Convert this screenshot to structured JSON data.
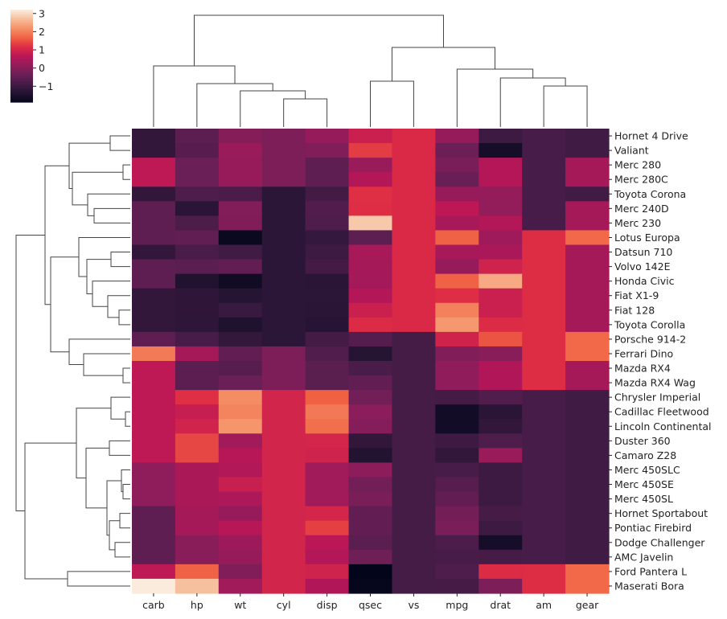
{
  "chart_data": {
    "type": "heatmap",
    "subtype": "clustermap",
    "title": "",
    "colormap": "rocket",
    "value_range": [
      -1.87,
      3.21
    ],
    "colorbar": {
      "ticks": [
        3,
        2,
        1,
        0,
        -1
      ],
      "tick_labels": [
        "3",
        "2",
        "1",
        "0",
        "−1"
      ],
      "placement": "top-left"
    },
    "columns": [
      "carb",
      "hp",
      "wt",
      "cyl",
      "disp",
      "qsec",
      "vs",
      "mpg",
      "drat",
      "am",
      "gear"
    ],
    "rows": [
      "Hornet 4 Drive",
      "Valiant",
      "Merc 280",
      "Merc 280C",
      "Toyota Corona",
      "Merc 240D",
      "Merc 230",
      "Lotus Europa",
      "Datsun 710",
      "Volvo 142E",
      "Honda Civic",
      "Fiat X1-9",
      "Fiat 128",
      "Toyota Corolla",
      "Porsche 914-2",
      "Ferrari Dino",
      "Mazda RX4",
      "Mazda RX4 Wag",
      "Chrysler Imperial",
      "Cadillac Fleetwood",
      "Lincoln Continental",
      "Duster 360",
      "Camaro Z28",
      "Merc 450SLC",
      "Merc 450SE",
      "Merc 450SL",
      "Hornet Sportabout",
      "Pontiac Firebird",
      "Dodge Challenger",
      "AMC Javelin",
      "Ford Pantera L",
      "Maserati Bora"
    ],
    "values": [
      [
        -1.12,
        -0.54,
        0.0,
        -0.1,
        0.22,
        0.89,
        1.12,
        0.22,
        -0.97,
        -0.81,
        -0.93
      ],
      [
        -1.12,
        -0.61,
        0.25,
        -0.1,
        -0.05,
        1.33,
        1.12,
        -0.33,
        -1.56,
        -0.81,
        -0.93
      ],
      [
        0.74,
        -0.35,
        0.23,
        -0.1,
        -0.51,
        0.25,
        1.12,
        -0.15,
        0.6,
        -0.81,
        0.42
      ],
      [
        0.74,
        -0.35,
        0.23,
        -0.1,
        -0.51,
        0.59,
        1.12,
        -0.38,
        0.6,
        -0.81,
        0.42
      ],
      [
        -1.12,
        -0.72,
        -0.77,
        -1.22,
        -0.89,
        1.21,
        1.12,
        0.23,
        0.19,
        -0.81,
        -0.93
      ],
      [
        -0.5,
        -1.24,
        -0.03,
        -1.22,
        -0.68,
        1.2,
        1.12,
        0.72,
        0.17,
        -0.81,
        0.42
      ],
      [
        -0.5,
        -0.75,
        -0.07,
        -1.22,
        -0.73,
        2.83,
        1.12,
        0.45,
        0.6,
        -0.81,
        0.42
      ],
      [
        -0.5,
        -0.49,
        -1.74,
        -1.22,
        -1.09,
        -0.53,
        1.12,
        1.71,
        0.32,
        1.19,
        1.78
      ],
      [
        -1.12,
        -0.78,
        -0.92,
        -1.22,
        -0.99,
        0.43,
        1.12,
        0.45,
        0.47,
        1.19,
        0.42
      ],
      [
        -0.5,
        -0.55,
        -0.45,
        -1.22,
        -0.89,
        0.42,
        1.12,
        0.22,
        0.96,
        1.19,
        0.42
      ],
      [
        -0.5,
        -1.38,
        -1.64,
        -1.22,
        -1.25,
        0.38,
        1.12,
        1.71,
        2.49,
        1.19,
        0.42
      ],
      [
        -1.12,
        -1.18,
        -1.31,
        -1.22,
        -1.22,
        0.59,
        1.12,
        1.2,
        0.9,
        1.19,
        0.42
      ],
      [
        -1.12,
        -1.18,
        -1.04,
        -1.22,
        -1.23,
        0.91,
        1.12,
        2.04,
        0.9,
        1.19,
        0.42
      ],
      [
        -1.12,
        -1.19,
        -1.41,
        -1.22,
        -1.29,
        1.15,
        1.12,
        2.29,
        1.17,
        1.19,
        0.42
      ],
      [
        -0.5,
        -0.81,
        -1.1,
        -1.22,
        -0.89,
        -0.64,
        -0.87,
        0.98,
        1.56,
        1.19,
        1.78
      ],
      [
        1.97,
        0.41,
        -0.46,
        -0.1,
        -0.69,
        -1.31,
        -0.87,
        -0.06,
        0.04,
        1.19,
        1.78
      ],
      [
        0.74,
        -0.54,
        -0.61,
        -0.1,
        -0.57,
        -0.78,
        -0.87,
        0.15,
        0.57,
        1.19,
        0.42
      ],
      [
        0.74,
        -0.54,
        -0.35,
        -0.1,
        -0.57,
        -0.46,
        -0.87,
        0.15,
        0.57,
        1.19,
        0.42
      ],
      [
        0.74,
        1.21,
        2.17,
        1.01,
        1.69,
        -0.24,
        -0.87,
        -0.89,
        -0.69,
        -0.81,
        -0.93
      ],
      [
        0.74,
        0.85,
        2.08,
        1.01,
        1.95,
        0.07,
        -0.87,
        -1.61,
        -1.25,
        -0.81,
        -0.93
      ],
      [
        0.74,
        0.99,
        2.26,
        1.01,
        1.85,
        -0.02,
        -0.87,
        -1.61,
        -1.12,
        -0.81,
        -0.93
      ],
      [
        0.74,
        1.43,
        0.36,
        1.01,
        1.04,
        -1.12,
        -0.87,
        -0.96,
        -0.72,
        -0.81,
        -0.93
      ],
      [
        0.74,
        1.43,
        0.64,
        1.01,
        0.96,
        -1.36,
        -0.87,
        -1.13,
        0.25,
        -0.81,
        -0.93
      ],
      [
        0.12,
        0.49,
        0.58,
        1.01,
        0.36,
        0.08,
        -0.87,
        -0.81,
        -0.98,
        -0.81,
        -0.93
      ],
      [
        0.12,
        0.49,
        0.87,
        1.01,
        0.36,
        -0.25,
        -0.87,
        -0.61,
        -0.98,
        -0.81,
        -0.93
      ],
      [
        0.12,
        0.49,
        0.52,
        1.01,
        0.36,
        -0.14,
        -0.87,
        -0.46,
        -0.98,
        -0.81,
        -0.93
      ],
      [
        -0.5,
        0.41,
        0.23,
        1.01,
        1.04,
        -0.46,
        -0.87,
        -0.23,
        -0.84,
        -0.81,
        -0.93
      ],
      [
        -0.5,
        0.41,
        0.64,
        1.01,
        1.37,
        -0.45,
        -0.87,
        -0.15,
        -0.97,
        -0.81,
        -0.93
      ],
      [
        -0.5,
        0.05,
        0.31,
        1.01,
        0.7,
        -0.55,
        -0.87,
        -0.76,
        -1.56,
        -0.81,
        -0.93
      ],
      [
        -0.5,
        0.05,
        0.22,
        1.01,
        0.59,
        -0.31,
        -0.87,
        -0.81,
        -0.84,
        -0.81,
        -0.93
      ],
      [
        0.74,
        1.71,
        -0.05,
        1.01,
        0.97,
        -1.87,
        -0.87,
        -0.71,
        1.17,
        1.19,
        1.78
      ],
      [
        3.21,
        2.75,
        0.36,
        1.01,
        0.57,
        -1.82,
        -0.87,
        -0.84,
        -0.11,
        1.19,
        1.78
      ]
    ],
    "row_dendrogram": "left",
    "column_dendrogram": "top",
    "grid": false
  }
}
